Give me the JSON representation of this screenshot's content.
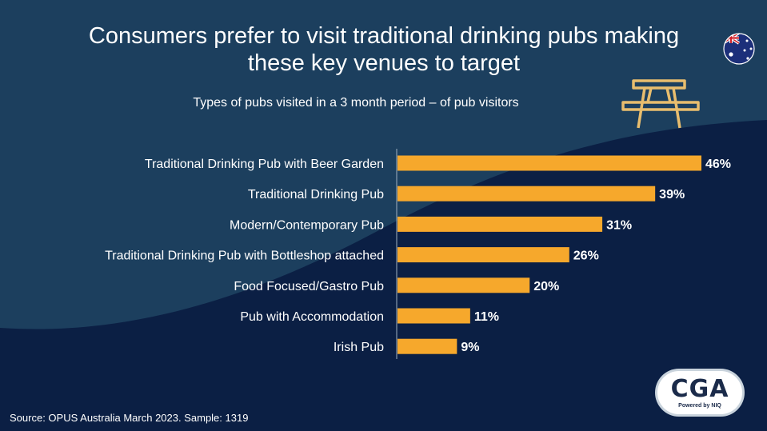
{
  "slide": {
    "title_line1": "Consumers prefer to visit traditional drinking pubs making",
    "title_line2": "these key venues to target",
    "subtitle": "Types of pubs visited in a 3 month period – of pub visitors",
    "source": "Source: OPUS Australia March 2023. Sample: 1319",
    "logo_text": "CGA",
    "logo_subtext": "Powered by NIQ",
    "flag_icon": "australia-flag-icon",
    "bench_icon": "picnic-bench-icon",
    "colors": {
      "background_top": "#1c3f5e",
      "background_bottom": "#0b1f44",
      "bar": "#f6a82c",
      "text": "#ffffff"
    }
  },
  "chart_data": {
    "type": "bar",
    "orientation": "horizontal",
    "categories": [
      "Traditional Drinking Pub with Beer Garden",
      "Traditional Drinking Pub",
      "Modern/Contemporary Pub",
      "Traditional Drinking Pub with Bottleshop attached",
      "Food Focused/Gastro Pub",
      "Pub with Accommodation",
      "Irish Pub"
    ],
    "values": [
      46,
      39,
      31,
      26,
      20,
      11,
      9
    ],
    "data_labels": [
      "46%",
      "39%",
      "31%",
      "26%",
      "20%",
      "11%",
      "9%"
    ],
    "unit": "%",
    "xlim": [
      0,
      46
    ],
    "grid": false,
    "legend": "none"
  }
}
